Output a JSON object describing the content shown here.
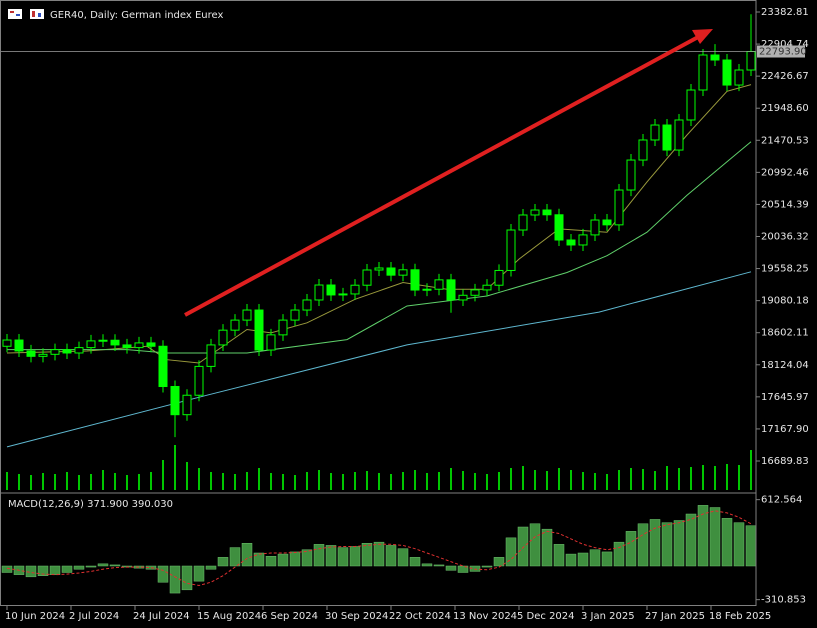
{
  "chart_data": [
    {
      "type": "candlestick",
      "title": "GER40, Daily:  German index Eurex",
      "xlim": [
        -1.75,
        187.25
      ],
      "ylim": [
        16227.6,
        23561.7
      ],
      "x": [
        0,
        3,
        6,
        9,
        12,
        15,
        18,
        21,
        24,
        27,
        30,
        33,
        36,
        39,
        42,
        45,
        48,
        51,
        54,
        57,
        60,
        63,
        66,
        69,
        72,
        75,
        78,
        81,
        84,
        87,
        90,
        93,
        96,
        99,
        102,
        105,
        108,
        111,
        114,
        117,
        120,
        123,
        126,
        129,
        132,
        135,
        138,
        141,
        144,
        147,
        150,
        153,
        156,
        159,
        162,
        165,
        168,
        171,
        174,
        177,
        180,
        183,
        186
      ],
      "open": [
        18400,
        18493,
        18330,
        18250,
        18280,
        18350,
        18300,
        18380,
        18480,
        18490,
        18420,
        18380,
        18450,
        18400,
        17800,
        17380,
        17670,
        18100,
        18420,
        18640,
        18790,
        18940,
        18344,
        18570,
        18790,
        18940,
        19090,
        19313,
        19165,
        19180,
        19310,
        19537,
        19567,
        19460,
        19540,
        19238,
        19250,
        19390,
        19090,
        19160,
        19240,
        19310,
        19530,
        20133,
        20357,
        20431,
        20360,
        19984,
        19910,
        20060,
        20282,
        20210,
        20729,
        21176,
        21475,
        21698,
        21325,
        21773,
        22220,
        22742,
        22667,
        22294,
        22518
      ],
      "high": [
        18583,
        18583,
        18420,
        18370,
        18440,
        18440,
        18470,
        18570,
        18580,
        18580,
        18510,
        18540,
        18540,
        18490,
        17890,
        17760,
        18190,
        18510,
        18730,
        18880,
        19030,
        19030,
        18660,
        18880,
        19030,
        19180,
        19403,
        19403,
        19270,
        19400,
        19627,
        19657,
        19657,
        19630,
        19630,
        19340,
        19480,
        19480,
        19250,
        19330,
        19400,
        19620,
        20223,
        20447,
        20521,
        20521,
        20450,
        20074,
        20150,
        20372,
        20372,
        20819,
        21266,
        21565,
        21788,
        21788,
        21863,
        22310,
        22832,
        22904,
        22757,
        22608,
        23350
      ],
      "low": [
        18310,
        18240,
        18160,
        18160,
        18190,
        18210,
        18210,
        18290,
        18390,
        18330,
        18290,
        18290,
        18310,
        17710,
        17046,
        17290,
        17580,
        18010,
        18330,
        18550,
        18700,
        18254,
        18254,
        18480,
        18700,
        18850,
        19000,
        19075,
        19075,
        19090,
        19220,
        19447,
        19370,
        19370,
        19148,
        19148,
        19160,
        18900,
        19000,
        19070,
        19150,
        19220,
        19440,
        20043,
        20267,
        20270,
        19894,
        19820,
        19820,
        19970,
        20120,
        20120,
        20639,
        21086,
        21385,
        21235,
        21235,
        21683,
        22130,
        22577,
        22204,
        22204,
        22428
      ],
      "close": [
        18493,
        18330,
        18250,
        18280,
        18350,
        18300,
        18380,
        18480,
        18490,
        18420,
        18380,
        18450,
        18400,
        17800,
        17380,
        17670,
        18100,
        18420,
        18640,
        18790,
        18940,
        18344,
        18570,
        18790,
        18940,
        19090,
        19313,
        19165,
        19180,
        19310,
        19537,
        19567,
        19460,
        19540,
        19238,
        19250,
        19390,
        19090,
        19160,
        19240,
        19310,
        19530,
        20133,
        20357,
        20431,
        20360,
        19984,
        19910,
        20060,
        20282,
        20210,
        20729,
        21176,
        21475,
        21698,
        21325,
        21773,
        22220,
        22742,
        22667,
        22294,
        22518,
        22794
      ],
      "volume": [
        18,
        16,
        15,
        17,
        16,
        18,
        15,
        16,
        20,
        17,
        15,
        16,
        18,
        30,
        45,
        28,
        22,
        18,
        17,
        16,
        18,
        22,
        17,
        16,
        15,
        18,
        20,
        17,
        16,
        18,
        19,
        17,
        16,
        18,
        20,
        17,
        18,
        22,
        19,
        17,
        16,
        18,
        22,
        24,
        20,
        19,
        22,
        20,
        18,
        17,
        16,
        20,
        22,
        21,
        19,
        24,
        22,
        23,
        25,
        24,
        26,
        25,
        40
      ],
      "candle_color": "#00ff00",
      "volume_color": "#00c800",
      "series": [
        {
          "color": "#9a9a3c",
          "x": [
            0,
            20,
            35,
            40,
            48,
            60,
            66,
            75,
            87,
            99,
            110,
            120,
            128,
            138,
            150,
            160,
            170,
            180,
            186
          ],
          "values": [
            18300,
            18330,
            18400,
            18200,
            18150,
            18650,
            18600,
            18750,
            19100,
            19350,
            19250,
            19250,
            19700,
            20150,
            20100,
            20850,
            21550,
            22200,
            22300
          ]
        },
        {
          "color": "#5fcf6a",
          "x": [
            0,
            30,
            40,
            60,
            85,
            100,
            120,
            140,
            150,
            160,
            170,
            180,
            186
          ],
          "values": [
            18350,
            18350,
            18300,
            18300,
            18500,
            19000,
            19150,
            19500,
            19750,
            20100,
            20650,
            21150,
            21450
          ]
        },
        {
          "color": "#5fb8d0",
          "x": [
            0,
            50,
            100,
            148,
            186
          ],
          "values": [
            16900,
            17670,
            18420,
            18910,
            19510
          ]
        }
      ],
      "price_line": {
        "value": 22793.9,
        "label": "22793.90"
      },
      "yticks": [
        23382.81,
        22904.74,
        22426.67,
        {
          "value": 21948.6,
          "label": "21948.60"
        },
        21470.53,
        20992.46,
        20514.39,
        20036.32,
        19558.25,
        19080.18,
        18602.11,
        18124.04,
        17645.97,
        {
          "value": 17167.9,
          "label": "17167.90"
        },
        16689.83
      ],
      "xticks": [
        {
          "value": 0,
          "label": "10 Jun 2024"
        },
        {
          "value": 16,
          "label": "2 Jul 2024"
        },
        {
          "value": 32,
          "label": "24 Jul 2024"
        },
        {
          "value": 48,
          "label": "15 Aug 2024"
        },
        {
          "value": 64,
          "label": "6 Sep 2024"
        },
        {
          "value": 80,
          "label": "30 Sep 2024"
        },
        {
          "value": 96,
          "label": "22 Oct 2024"
        },
        {
          "value": 112,
          "label": "13 Nov 2024"
        },
        {
          "value": 128,
          "label": "5 Dec 2024"
        },
        {
          "value": 144,
          "label": "3 Jan 2025"
        },
        {
          "value": 160,
          "label": "27 Jan 2025"
        },
        {
          "value": 176,
          "label": "18 Feb 2025"
        }
      ]
    },
    {
      "type": "macd",
      "title": "MACD(12,26,9) 371.900 390.030",
      "ylim": [
        -369.4,
        664.8
      ],
      "yticks": [
        612.564,
        -310.853
      ],
      "bar_color": "#3f8f3f",
      "signal_color": "#e03030",
      "values": [
        -60,
        -80,
        -100,
        -90,
        -80,
        -60,
        -30,
        -10,
        20,
        10,
        -10,
        -20,
        -30,
        -150,
        -250,
        -220,
        -140,
        -30,
        80,
        170,
        210,
        120,
        90,
        110,
        130,
        150,
        200,
        190,
        170,
        180,
        210,
        220,
        190,
        160,
        80,
        20,
        10,
        -40,
        -60,
        -50,
        -10,
        80,
        260,
        360,
        390,
        340,
        200,
        110,
        120,
        150,
        130,
        220,
        320,
        390,
        430,
        400,
        420,
        480,
        560,
        540,
        440,
        400,
        371.9
      ],
      "signal": [
        -20,
        -40,
        -60,
        -75,
        -80,
        -75,
        -65,
        -50,
        -30,
        -15,
        -10,
        -10,
        -15,
        -40,
        -100,
        -160,
        -180,
        -150,
        -90,
        -10,
        70,
        110,
        120,
        120,
        125,
        135,
        160,
        175,
        180,
        180,
        190,
        200,
        200,
        190,
        160,
        120,
        80,
        40,
        0,
        -30,
        -35,
        -10,
        60,
        170,
        270,
        320,
        300,
        250,
        200,
        170,
        150,
        170,
        220,
        290,
        350,
        380,
        400,
        430,
        480,
        510,
        490,
        450,
        390.03
      ]
    }
  ]
}
